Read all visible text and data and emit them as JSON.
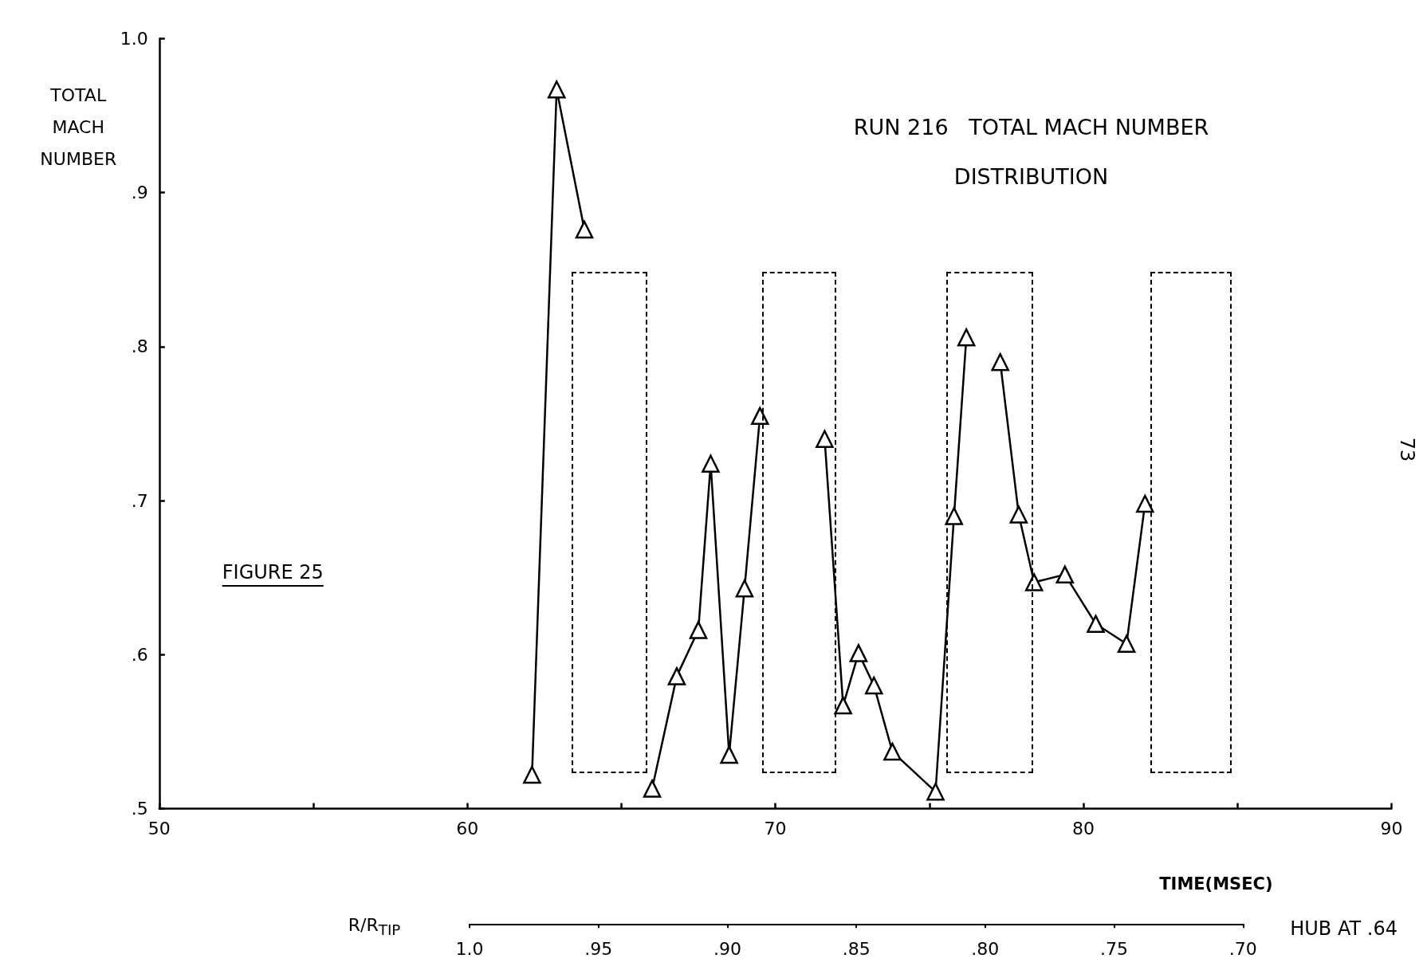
{
  "chart_data": {
    "type": "line",
    "title": "RUN 216   TOTAL MACH NUMBER\nDISTRIBUTION",
    "xlabel": "TIME(MSEC)",
    "ylabel": "TOTAL MACH NUMBER",
    "x2label": "R/R$_{TIP}$",
    "x": [
      62.1,
      62.9,
      63.8,
      64.9,
      66.0,
      66.8,
      67.5,
      67.9,
      68.5,
      69.0,
      69.5,
      70.5,
      71.6,
      72.2,
      72.7,
      73.2,
      73.8,
      75.2,
      75.8,
      76.2,
      76.7,
      77.3,
      77.9,
      78.4,
      79.4,
      80.4,
      81.4,
      82.0
    ],
    "series": [
      {
        "color": "#000000",
        "values": [
          0.522,
          0.967,
          0.876,
          null,
          0.513,
          0.586,
          0.616,
          0.724,
          0.535,
          0.643,
          0.755,
          null,
          0.74,
          0.567,
          0.601,
          0.58,
          0.537,
          0.511,
          0.69,
          0.806,
          null,
          0.79,
          0.691,
          0.647,
          0.652,
          0.62,
          0.607,
          0.698
        ]
      }
    ],
    "marker": "triangle",
    "line_style": "solid",
    "grid": false,
    "xlim": [
      50,
      90
    ],
    "xticks": [
      50,
      {
        "value": 55,
        "label": null
      },
      60,
      {
        "value": 65,
        "label": null
      },
      70,
      {
        "value": 75,
        "label": null
      },
      80,
      {
        "value": 85,
        "label": null
      },
      90
    ],
    "ylim": [
      0.5,
      1.0
    ],
    "yticks": [
      {
        "value": 0.5,
        "label": ".5"
      },
      {
        "value": 0.6,
        "label": ".6"
      },
      {
        "value": 0.7,
        "label": ".7"
      },
      {
        "value": 0.8,
        "label": ".8"
      },
      {
        "value": 0.9,
        "label": ".9"
      },
      {
        "value": 1.0,
        "label": "1.0"
      }
    ],
    "x2lim": [
      1.0,
      0.7
    ],
    "x2ticks": [
      {
        "value": 1.0,
        "label": "1.0"
      },
      {
        "value": 0.95,
        "label": ".95"
      },
      {
        "value": 0.9,
        "label": ".90"
      },
      {
        "value": 0.85,
        "label": ".85"
      },
      {
        "value": 0.8,
        "label": ".80"
      },
      {
        "value": 0.75,
        "label": ".75"
      },
      {
        "value": 0.7,
        "label": ".70"
      }
    ],
    "annotations": [
      "FIGURE 25",
      "HUB AT .64",
      "73"
    ]
  }
}
